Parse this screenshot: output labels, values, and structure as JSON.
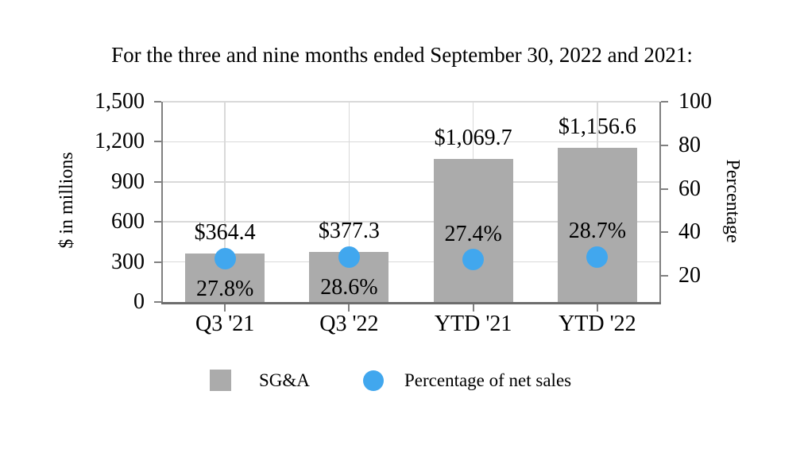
{
  "chart_data": {
    "type": "bar",
    "title": "For the three and nine months ended September 30, 2022 and 2021:",
    "categories": [
      "Q3 '21",
      "Q3 '22",
      "YTD '21",
      "YTD '22"
    ],
    "series": [
      {
        "name": "SG&A",
        "type": "bar",
        "axis": "left",
        "color": "#ababab",
        "values": [
          364.4,
          377.3,
          1069.7,
          1156.6
        ],
        "labels": [
          "$364.4",
          "$377.3",
          "$1,069.7",
          "$1,156.6"
        ]
      },
      {
        "name": "Percentage of net sales",
        "type": "scatter",
        "axis": "right",
        "color": "#41a7ee",
        "values": [
          27.8,
          28.6,
          27.4,
          28.7
        ],
        "labels": [
          "27.8%",
          "28.6%",
          "27.4%",
          "28.7%"
        ],
        "label_positions": [
          "below",
          "below",
          "above",
          "above"
        ],
        "leader_lines": [
          true,
          true,
          false,
          false
        ]
      }
    ],
    "left_axis": {
      "title": "$ in millions",
      "min": 0,
      "max": 1500,
      "tick_values": [
        0,
        300,
        600,
        900,
        1200,
        1500
      ],
      "tick_labels": [
        "0",
        "300",
        "600",
        "900",
        "1,200",
        "1,500"
      ]
    },
    "right_axis": {
      "title": "Percentage",
      "min": 8,
      "max": 100,
      "tick_values": [
        20,
        40,
        60,
        80,
        100
      ],
      "tick_labels": [
        "20",
        "40",
        "60",
        "80",
        "100"
      ]
    },
    "grid": true,
    "legend_position": "bottom"
  }
}
